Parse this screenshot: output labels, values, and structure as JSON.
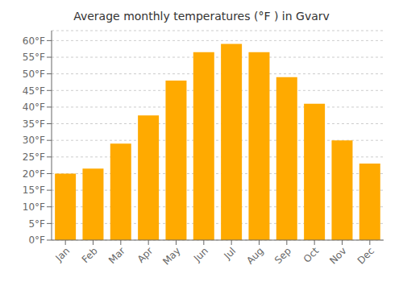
{
  "chart_data": {
    "type": "bar",
    "title": "Average monthly temperatures (°F ) in Gvarv",
    "categories": [
      "Jan",
      "Feb",
      "Mar",
      "Apr",
      "May",
      "Jun",
      "Jul",
      "Aug",
      "Sep",
      "Oct",
      "Nov",
      "Dec"
    ],
    "values": [
      20.0,
      21.5,
      29.0,
      37.5,
      48.0,
      56.5,
      59.0,
      56.5,
      49.0,
      41.0,
      30.0,
      23.0
    ],
    "color": "#FFAA00",
    "ylim": [
      0,
      63
    ],
    "yticks": [
      {
        "value": 0,
        "label": "0°F"
      },
      {
        "value": 5,
        "label": "5°F"
      },
      {
        "value": 10,
        "label": "10°F"
      },
      {
        "value": 15,
        "label": "15°F"
      },
      {
        "value": 20,
        "label": "20°F"
      },
      {
        "value": 25,
        "label": "25°F"
      },
      {
        "value": 30,
        "label": "30°F"
      },
      {
        "value": 35,
        "label": "35°F"
      },
      {
        "value": 40,
        "label": "40°F"
      },
      {
        "value": 45,
        "label": "45°F"
      },
      {
        "value": 50,
        "label": "50°F"
      },
      {
        "value": 55,
        "label": "55°F"
      },
      {
        "value": 60,
        "label": "60°F"
      }
    ],
    "grid": true
  }
}
